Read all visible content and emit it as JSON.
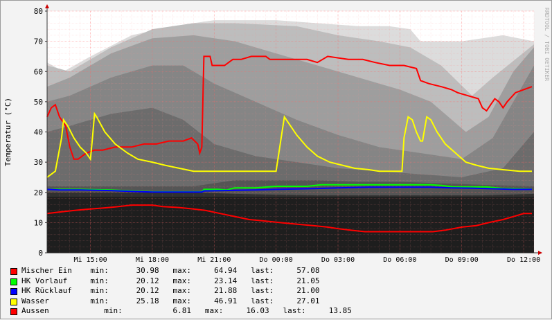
{
  "chart_data": {
    "type": "line",
    "ylabel": "Temperatur (°C)",
    "watermark": "RRDTOOL / TOBI OETIKER",
    "ylim": [
      0,
      80
    ],
    "yticks": [
      0,
      10,
      20,
      30,
      40,
      50,
      60,
      70,
      80
    ],
    "xlim": [
      12.9,
      36.5
    ],
    "xticks": [
      {
        "x": 15,
        "label": "Mi 15:00"
      },
      {
        "x": 18,
        "label": "Mi 18:00"
      },
      {
        "x": 21,
        "label": "Mi 21:00"
      },
      {
        "x": 24,
        "label": "Do 00:00"
      },
      {
        "x": 27,
        "label": "Do 03:00"
      },
      {
        "x": 30,
        "label": "Do 06:00"
      },
      {
        "x": 33,
        "label": "Do 09:00"
      },
      {
        "x": 36,
        "label": "Do 12:00"
      }
    ],
    "grid": true,
    "series": [
      {
        "name": "Mischer Ein",
        "color": "#ff0000",
        "stats": {
          "min": "30.98",
          "max": "64.94",
          "last": "57.08"
        },
        "points": [
          [
            12.9,
            45
          ],
          [
            13.1,
            48
          ],
          [
            13.3,
            49
          ],
          [
            13.5,
            45
          ],
          [
            13.8,
            42
          ],
          [
            14.0,
            35
          ],
          [
            14.2,
            31
          ],
          [
            14.4,
            31
          ],
          [
            14.8,
            33
          ],
          [
            15.2,
            34
          ],
          [
            15.6,
            34
          ],
          [
            16.2,
            35
          ],
          [
            17.0,
            35
          ],
          [
            17.6,
            36
          ],
          [
            18.2,
            36
          ],
          [
            18.8,
            37
          ],
          [
            19.5,
            37
          ],
          [
            19.9,
            38
          ],
          [
            20.2,
            36
          ],
          [
            20.3,
            33
          ],
          [
            20.4,
            35
          ],
          [
            20.5,
            65
          ],
          [
            20.8,
            65
          ],
          [
            20.9,
            62
          ],
          [
            21.3,
            62
          ],
          [
            21.5,
            62
          ],
          [
            21.9,
            64
          ],
          [
            22.3,
            64
          ],
          [
            22.8,
            65
          ],
          [
            23.5,
            65
          ],
          [
            23.7,
            64
          ],
          [
            24.5,
            64
          ],
          [
            25.5,
            64
          ],
          [
            26.0,
            63
          ],
          [
            26.5,
            65
          ],
          [
            27.5,
            64
          ],
          [
            28.2,
            64
          ],
          [
            28.8,
            63
          ],
          [
            29.5,
            62
          ],
          [
            30.2,
            62
          ],
          [
            30.8,
            61
          ],
          [
            31.0,
            57
          ],
          [
            31.4,
            56
          ],
          [
            32.0,
            55
          ],
          [
            32.5,
            54
          ],
          [
            32.8,
            53
          ],
          [
            33.3,
            52
          ],
          [
            33.8,
            51
          ],
          [
            34.0,
            48
          ],
          [
            34.2,
            47
          ],
          [
            34.4,
            49
          ],
          [
            34.6,
            51
          ],
          [
            34.8,
            50
          ],
          [
            35.0,
            48
          ],
          [
            35.2,
            50
          ],
          [
            35.6,
            53
          ],
          [
            36.0,
            54
          ],
          [
            36.4,
            55
          ]
        ]
      },
      {
        "name": "HK Vorlauf",
        "color": "#00ff00",
        "stats": {
          "min": "20.12",
          "max": "23.14",
          "last": "21.05"
        },
        "points": [
          [
            12.9,
            21
          ],
          [
            13.5,
            21
          ],
          [
            14.5,
            21
          ],
          [
            16.0,
            20.8
          ],
          [
            17.0,
            20.5
          ],
          [
            18.0,
            20.2
          ],
          [
            19.5,
            20.2
          ],
          [
            20.4,
            20.2
          ],
          [
            20.5,
            21
          ],
          [
            21.2,
            21
          ],
          [
            21.6,
            20.8
          ],
          [
            22.0,
            21.5
          ],
          [
            23.0,
            21.5
          ],
          [
            24.0,
            22
          ],
          [
            25.5,
            22
          ],
          [
            26.2,
            22.5
          ],
          [
            27.0,
            22.5
          ],
          [
            28.0,
            22.5
          ],
          [
            29.5,
            22.5
          ],
          [
            30.5,
            22.5
          ],
          [
            31.5,
            22.5
          ],
          [
            32.0,
            22.3
          ],
          [
            32.6,
            21.8
          ],
          [
            33.5,
            21.8
          ],
          [
            34.2,
            21.8
          ],
          [
            35.0,
            21.3
          ],
          [
            35.6,
            21.2
          ],
          [
            36.4,
            21.05
          ]
        ]
      },
      {
        "name": "HK Rücklauf",
        "color": "#0000ff",
        "stats": {
          "min": "20.12",
          "max": "21.88",
          "last": "21.00"
        },
        "points": [
          [
            12.9,
            21
          ],
          [
            13.5,
            20.8
          ],
          [
            14.5,
            20.8
          ],
          [
            16.0,
            20.6
          ],
          [
            17.0,
            20.3
          ],
          [
            18.0,
            20.1
          ],
          [
            19.5,
            20.1
          ],
          [
            20.4,
            20.1
          ],
          [
            20.5,
            20.5
          ],
          [
            21.5,
            20.6
          ],
          [
            23.0,
            20.8
          ],
          [
            24.0,
            21
          ],
          [
            25.5,
            21.2
          ],
          [
            27.0,
            21.5
          ],
          [
            28.5,
            21.7
          ],
          [
            30.0,
            21.7
          ],
          [
            31.5,
            21.7
          ],
          [
            32.5,
            21.5
          ],
          [
            33.5,
            21.4
          ],
          [
            34.5,
            21.2
          ],
          [
            35.5,
            21.0
          ],
          [
            36.4,
            21.0
          ]
        ]
      },
      {
        "name": "Wasser",
        "color": "#ffff00",
        "stats": {
          "min": "25.18",
          "max": "46.91",
          "last": "27.01"
        },
        "points": [
          [
            12.9,
            25
          ],
          [
            13.1,
            26
          ],
          [
            13.3,
            27
          ],
          [
            13.6,
            38
          ],
          [
            13.7,
            44
          ],
          [
            13.9,
            42
          ],
          [
            14.2,
            38
          ],
          [
            14.5,
            35
          ],
          [
            14.8,
            33
          ],
          [
            15.0,
            31
          ],
          [
            15.1,
            38
          ],
          [
            15.2,
            46
          ],
          [
            15.3,
            45
          ],
          [
            15.7,
            40
          ],
          [
            16.2,
            36
          ],
          [
            16.8,
            33
          ],
          [
            17.3,
            31
          ],
          [
            18.0,
            30
          ],
          [
            18.6,
            29
          ],
          [
            19.3,
            28
          ],
          [
            20.0,
            27
          ],
          [
            21.0,
            27
          ],
          [
            22.0,
            27
          ],
          [
            23.0,
            27
          ],
          [
            24.0,
            27
          ],
          [
            24.2,
            36
          ],
          [
            24.4,
            45
          ],
          [
            24.6,
            43
          ],
          [
            25.0,
            39
          ],
          [
            25.5,
            35
          ],
          [
            26.0,
            32
          ],
          [
            26.6,
            30
          ],
          [
            27.2,
            29
          ],
          [
            27.8,
            28
          ],
          [
            28.5,
            27.5
          ],
          [
            29.0,
            27
          ],
          [
            29.6,
            27
          ],
          [
            30.1,
            27
          ],
          [
            30.2,
            38
          ],
          [
            30.4,
            45
          ],
          [
            30.6,
            44
          ],
          [
            30.8,
            40
          ],
          [
            31.0,
            37
          ],
          [
            31.1,
            37
          ],
          [
            31.3,
            45
          ],
          [
            31.5,
            44
          ],
          [
            31.8,
            40
          ],
          [
            32.2,
            36
          ],
          [
            32.7,
            33
          ],
          [
            33.2,
            30
          ],
          [
            33.7,
            29
          ],
          [
            34.3,
            28
          ],
          [
            35.0,
            27.5
          ],
          [
            35.8,
            27
          ],
          [
            36.4,
            27
          ]
        ]
      },
      {
        "name": "Aussen",
        "color": "#ff0000",
        "stats": {
          "min": "6.81",
          "max": "16.03",
          "last": "13.85"
        },
        "points": [
          [
            12.9,
            13
          ],
          [
            13.5,
            13.5
          ],
          [
            14.2,
            14
          ],
          [
            15.0,
            14.5
          ],
          [
            15.6,
            14.8
          ],
          [
            16.2,
            15.2
          ],
          [
            17.0,
            15.8
          ],
          [
            18.0,
            15.8
          ],
          [
            18.5,
            15.3
          ],
          [
            19.3,
            15
          ],
          [
            20.0,
            14.5
          ],
          [
            20.6,
            14
          ],
          [
            21.3,
            13
          ],
          [
            22.0,
            12
          ],
          [
            22.7,
            11
          ],
          [
            23.5,
            10.5
          ],
          [
            24.2,
            10
          ],
          [
            25.0,
            9.5
          ],
          [
            25.8,
            9
          ],
          [
            26.5,
            8.5
          ],
          [
            27.0,
            8
          ],
          [
            27.6,
            7.5
          ],
          [
            28.3,
            7
          ],
          [
            29.0,
            7
          ],
          [
            29.7,
            7
          ],
          [
            30.3,
            7
          ],
          [
            31.0,
            7
          ],
          [
            31.6,
            7
          ],
          [
            32.2,
            7.5
          ],
          [
            33.0,
            8.5
          ],
          [
            33.7,
            9
          ],
          [
            34.3,
            10
          ],
          [
            35.0,
            11
          ],
          [
            35.6,
            12.2
          ],
          [
            36.0,
            13
          ],
          [
            36.4,
            13
          ]
        ]
      }
    ]
  },
  "legend_labels": {
    "min": "min:",
    "max": "max:",
    "last": "last:"
  }
}
